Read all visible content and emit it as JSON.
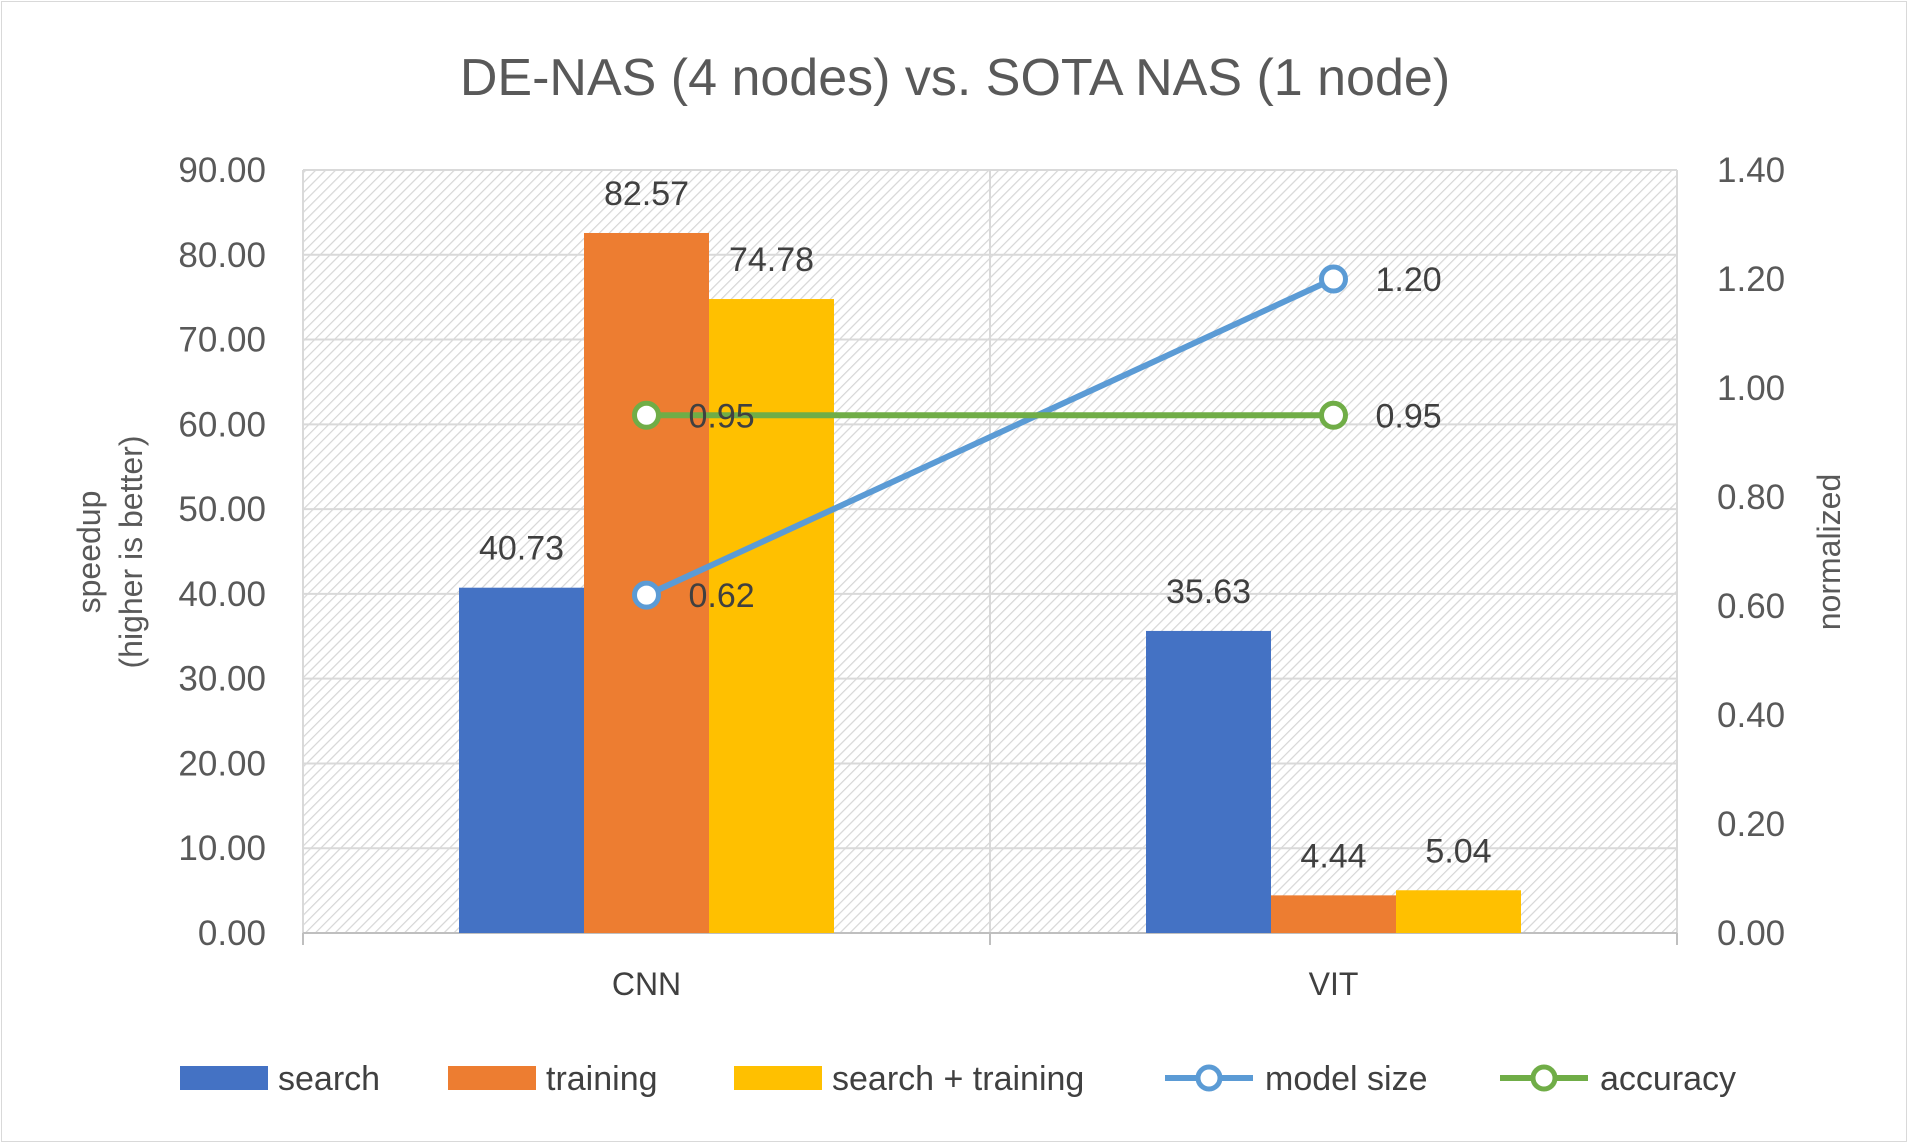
{
  "chart_data": {
    "type": "bar",
    "title": "DE-NAS (4 nodes) vs. SOTA NAS (1 node)",
    "categories": [
      "CNN",
      "VIT"
    ],
    "y_left": {
      "label_line1": "speedup",
      "label_line2": "(higher is better)",
      "ylim": [
        0,
        90
      ],
      "ticks": [
        "0.00",
        "10.00",
        "20.00",
        "30.00",
        "40.00",
        "50.00",
        "60.00",
        "70.00",
        "80.00",
        "90.00"
      ]
    },
    "y_right": {
      "label": "normalized",
      "ylim": [
        0,
        1.4
      ],
      "ticks": [
        "0.00",
        "0.20",
        "0.40",
        "0.60",
        "0.80",
        "1.00",
        "1.20",
        "1.40"
      ]
    },
    "bar_series": [
      {
        "name": "search",
        "color": "#4472c4",
        "values": [
          40.73,
          35.63
        ],
        "labels": [
          "40.73",
          "35.63"
        ]
      },
      {
        "name": "training",
        "color": "#ed7d31",
        "values": [
          82.57,
          4.44
        ],
        "labels": [
          "82.57",
          "4.44"
        ]
      },
      {
        "name": "search + training",
        "color": "#ffc000",
        "values": [
          74.78,
          5.04
        ],
        "labels": [
          "74.78",
          "5.04"
        ]
      }
    ],
    "line_series": [
      {
        "name": "model size",
        "color": "#5b9bd5",
        "axis": "right",
        "values": [
          0.62,
          1.2
        ],
        "labels": [
          "0.62",
          "1.20"
        ]
      },
      {
        "name": "accuracy",
        "color": "#70ad47",
        "axis": "right",
        "values": [
          0.95,
          0.95
        ],
        "labels": [
          "0.95",
          "0.95"
        ]
      }
    ],
    "grid": true,
    "legend_position": "bottom"
  }
}
